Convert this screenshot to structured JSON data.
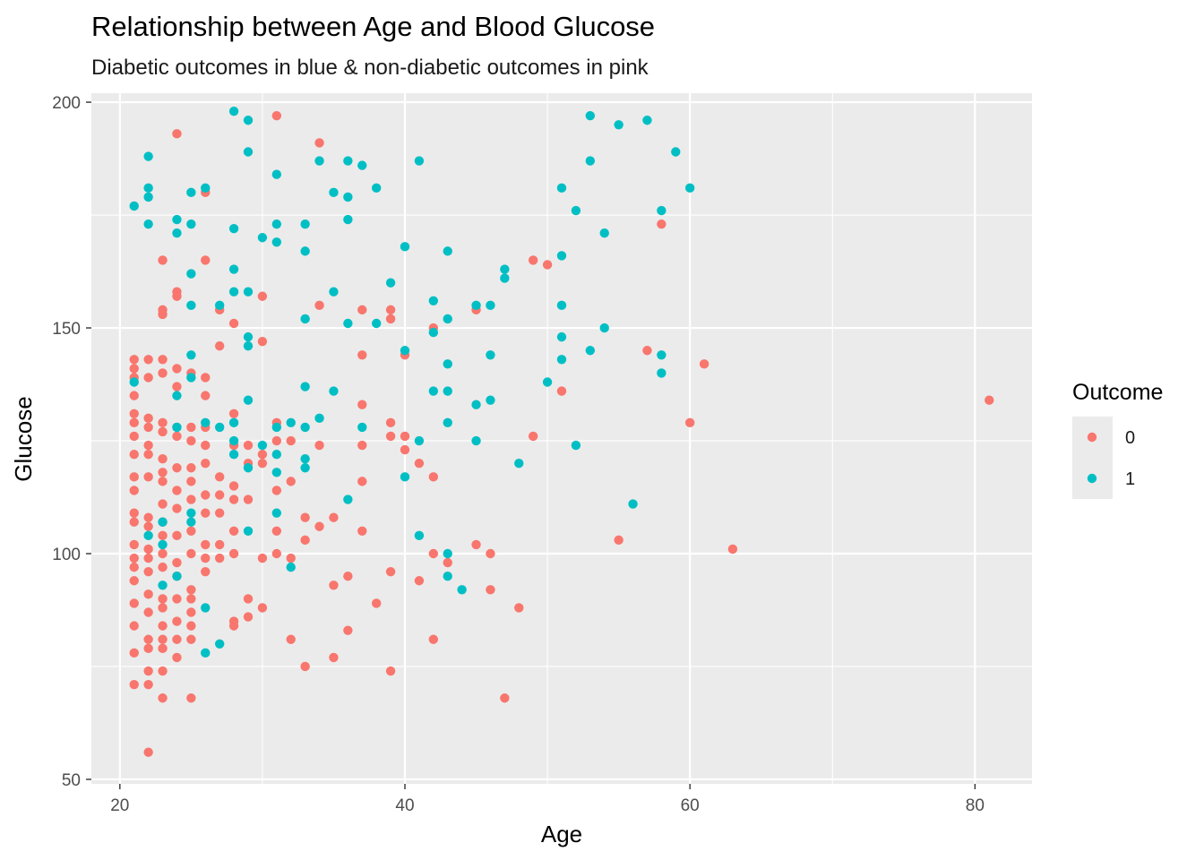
{
  "chart_data": {
    "type": "scatter",
    "title": "Relationship between Age and Blood Glucose",
    "subtitle": "Diabetic outcomes in blue & non-diabetic outcomes in pink",
    "xlabel": "Age",
    "ylabel": "Glucose",
    "xlim": [
      18,
      84
    ],
    "ylim": [
      49,
      202
    ],
    "x_ticks": [
      20,
      40,
      60,
      80
    ],
    "y_ticks": [
      50,
      100,
      150,
      200
    ],
    "grid": true,
    "legend": {
      "title": "Outcome",
      "position": "right"
    },
    "series": [
      {
        "name": "0",
        "color": "#F8766D",
        "points": [
          [
            21,
            143
          ],
          [
            21,
            141
          ],
          [
            21,
            139
          ],
          [
            21,
            135
          ],
          [
            21,
            131
          ],
          [
            21,
            129
          ],
          [
            21,
            126
          ],
          [
            21,
            122
          ],
          [
            21,
            117
          ],
          [
            21,
            114
          ],
          [
            21,
            109
          ],
          [
            21,
            107
          ],
          [
            21,
            102
          ],
          [
            21,
            99
          ],
          [
            21,
            97
          ],
          [
            21,
            94
          ],
          [
            21,
            89
          ],
          [
            21,
            84
          ],
          [
            21,
            78
          ],
          [
            21,
            71
          ],
          [
            22,
            143
          ],
          [
            22,
            139
          ],
          [
            22,
            130
          ],
          [
            22,
            128
          ],
          [
            22,
            124
          ],
          [
            22,
            122
          ],
          [
            22,
            117
          ],
          [
            22,
            108
          ],
          [
            22,
            106
          ],
          [
            22,
            101
          ],
          [
            22,
            99
          ],
          [
            22,
            96
          ],
          [
            22,
            91
          ],
          [
            22,
            87
          ],
          [
            22,
            81
          ],
          [
            22,
            79
          ],
          [
            22,
            74
          ],
          [
            22,
            71
          ],
          [
            22,
            56
          ],
          [
            23,
            165
          ],
          [
            23,
            154
          ],
          [
            23,
            153
          ],
          [
            23,
            143
          ],
          [
            23,
            140
          ],
          [
            23,
            129
          ],
          [
            23,
            127
          ],
          [
            23,
            121
          ],
          [
            23,
            118
          ],
          [
            23,
            116
          ],
          [
            23,
            111
          ],
          [
            23,
            107
          ],
          [
            23,
            104
          ],
          [
            23,
            100
          ],
          [
            23,
            97
          ],
          [
            23,
            90
          ],
          [
            23,
            88
          ],
          [
            23,
            84
          ],
          [
            23,
            81
          ],
          [
            23,
            79
          ],
          [
            23,
            74
          ],
          [
            23,
            68
          ],
          [
            24,
            193
          ],
          [
            24,
            158
          ],
          [
            24,
            157
          ],
          [
            24,
            141
          ],
          [
            24,
            137
          ],
          [
            24,
            128
          ],
          [
            24,
            126
          ],
          [
            24,
            119
          ],
          [
            24,
            114
          ],
          [
            24,
            110
          ],
          [
            24,
            104
          ],
          [
            24,
            98
          ],
          [
            24,
            95
          ],
          [
            24,
            90
          ],
          [
            24,
            85
          ],
          [
            24,
            81
          ],
          [
            24,
            77
          ],
          [
            25,
            140
          ],
          [
            25,
            128
          ],
          [
            25,
            125
          ],
          [
            25,
            119
          ],
          [
            25,
            116
          ],
          [
            25,
            112
          ],
          [
            25,
            105
          ],
          [
            25,
            100
          ],
          [
            25,
            92
          ],
          [
            25,
            90
          ],
          [
            25,
            87
          ],
          [
            25,
            84
          ],
          [
            25,
            81
          ],
          [
            25,
            68
          ],
          [
            26,
            180
          ],
          [
            26,
            165
          ],
          [
            26,
            139
          ],
          [
            26,
            135
          ],
          [
            26,
            128
          ],
          [
            26,
            124
          ],
          [
            26,
            120
          ],
          [
            26,
            113
          ],
          [
            26,
            109
          ],
          [
            26,
            102
          ],
          [
            26,
            99
          ],
          [
            26,
            96
          ],
          [
            27,
            154
          ],
          [
            27,
            146
          ],
          [
            27,
            117
          ],
          [
            27,
            113
          ],
          [
            27,
            109
          ],
          [
            27,
            102
          ],
          [
            27,
            99
          ],
          [
            28,
            151
          ],
          [
            28,
            131
          ],
          [
            28,
            124
          ],
          [
            28,
            115
          ],
          [
            28,
            112
          ],
          [
            28,
            105
          ],
          [
            28,
            100
          ],
          [
            28,
            85
          ],
          [
            28,
            84
          ],
          [
            29,
            124
          ],
          [
            29,
            120
          ],
          [
            29,
            112
          ],
          [
            29,
            90
          ],
          [
            29,
            86
          ],
          [
            30,
            157
          ],
          [
            30,
            147
          ],
          [
            30,
            122
          ],
          [
            30,
            120
          ],
          [
            30,
            99
          ],
          [
            30,
            88
          ],
          [
            31,
            197
          ],
          [
            31,
            129
          ],
          [
            31,
            125
          ],
          [
            31,
            114
          ],
          [
            31,
            105
          ],
          [
            31,
            100
          ],
          [
            32,
            125
          ],
          [
            32,
            116
          ],
          [
            32,
            99
          ],
          [
            32,
            81
          ],
          [
            33,
            108
          ],
          [
            33,
            103
          ],
          [
            33,
            75
          ],
          [
            34,
            191
          ],
          [
            34,
            155
          ],
          [
            34,
            124
          ],
          [
            34,
            106
          ],
          [
            35,
            108
          ],
          [
            35,
            93
          ],
          [
            35,
            77
          ],
          [
            36,
            95
          ],
          [
            36,
            83
          ],
          [
            37,
            154
          ],
          [
            37,
            144
          ],
          [
            37,
            133
          ],
          [
            37,
            124
          ],
          [
            37,
            116
          ],
          [
            37,
            105
          ],
          [
            38,
            89
          ],
          [
            39,
            154
          ],
          [
            39,
            152
          ],
          [
            39,
            129
          ],
          [
            39,
            126
          ],
          [
            39,
            96
          ],
          [
            39,
            74
          ],
          [
            40,
            144
          ],
          [
            40,
            126
          ],
          [
            40,
            123
          ],
          [
            41,
            120
          ],
          [
            41,
            94
          ],
          [
            42,
            150
          ],
          [
            42,
            117
          ],
          [
            42,
            100
          ],
          [
            42,
            81
          ],
          [
            43,
            98
          ],
          [
            45,
            154
          ],
          [
            45,
            102
          ],
          [
            46,
            100
          ],
          [
            46,
            92
          ],
          [
            47,
            68
          ],
          [
            48,
            88
          ],
          [
            49,
            165
          ],
          [
            49,
            126
          ],
          [
            50,
            164
          ],
          [
            51,
            136
          ],
          [
            55,
            103
          ],
          [
            57,
            145
          ],
          [
            58,
            173
          ],
          [
            60,
            129
          ],
          [
            61,
            142
          ],
          [
            63,
            101
          ],
          [
            81,
            134
          ]
        ]
      },
      {
        "name": "1",
        "color": "#00BFC4",
        "points": [
          [
            21,
            177
          ],
          [
            21,
            138
          ],
          [
            22,
            188
          ],
          [
            22,
            181
          ],
          [
            22,
            179
          ],
          [
            22,
            173
          ],
          [
            22,
            104
          ],
          [
            23,
            107
          ],
          [
            23,
            102
          ],
          [
            23,
            93
          ],
          [
            24,
            174
          ],
          [
            24,
            171
          ],
          [
            24,
            135
          ],
          [
            24,
            128
          ],
          [
            24,
            95
          ],
          [
            25,
            180
          ],
          [
            25,
            173
          ],
          [
            25,
            162
          ],
          [
            25,
            155
          ],
          [
            25,
            144
          ],
          [
            25,
            139
          ],
          [
            25,
            109
          ],
          [
            25,
            107
          ],
          [
            26,
            181
          ],
          [
            26,
            129
          ],
          [
            26,
            88
          ],
          [
            26,
            78
          ],
          [
            27,
            155
          ],
          [
            27,
            128
          ],
          [
            27,
            80
          ],
          [
            28,
            198
          ],
          [
            28,
            172
          ],
          [
            28,
            163
          ],
          [
            28,
            158
          ],
          [
            28,
            129
          ],
          [
            28,
            125
          ],
          [
            28,
            122
          ],
          [
            29,
            196
          ],
          [
            29,
            189
          ],
          [
            29,
            158
          ],
          [
            29,
            148
          ],
          [
            29,
            146
          ],
          [
            29,
            134
          ],
          [
            29,
            119
          ],
          [
            29,
            105
          ],
          [
            30,
            170
          ],
          [
            30,
            124
          ],
          [
            31,
            184
          ],
          [
            31,
            173
          ],
          [
            31,
            169
          ],
          [
            31,
            128
          ],
          [
            31,
            122
          ],
          [
            31,
            118
          ],
          [
            31,
            109
          ],
          [
            32,
            129
          ],
          [
            32,
            97
          ],
          [
            33,
            173
          ],
          [
            33,
            167
          ],
          [
            33,
            152
          ],
          [
            33,
            137
          ],
          [
            33,
            128
          ],
          [
            33,
            121
          ],
          [
            33,
            119
          ],
          [
            34,
            187
          ],
          [
            34,
            130
          ],
          [
            35,
            180
          ],
          [
            35,
            158
          ],
          [
            35,
            136
          ],
          [
            36,
            187
          ],
          [
            36,
            179
          ],
          [
            36,
            174
          ],
          [
            36,
            151
          ],
          [
            36,
            112
          ],
          [
            37,
            186
          ],
          [
            37,
            128
          ],
          [
            38,
            181
          ],
          [
            38,
            151
          ],
          [
            39,
            160
          ],
          [
            40,
            168
          ],
          [
            40,
            145
          ],
          [
            40,
            117
          ],
          [
            41,
            187
          ],
          [
            41,
            125
          ],
          [
            41,
            104
          ],
          [
            42,
            156
          ],
          [
            42,
            149
          ],
          [
            42,
            136
          ],
          [
            43,
            167
          ],
          [
            43,
            152
          ],
          [
            43,
            142
          ],
          [
            43,
            136
          ],
          [
            43,
            129
          ],
          [
            43,
            100
          ],
          [
            43,
            95
          ],
          [
            44,
            92
          ],
          [
            45,
            155
          ],
          [
            45,
            133
          ],
          [
            45,
            125
          ],
          [
            46,
            155
          ],
          [
            46,
            144
          ],
          [
            46,
            134
          ],
          [
            47,
            163
          ],
          [
            47,
            161
          ],
          [
            48,
            120
          ],
          [
            50,
            138
          ],
          [
            51,
            181
          ],
          [
            51,
            166
          ],
          [
            51,
            155
          ],
          [
            51,
            148
          ],
          [
            51,
            143
          ],
          [
            52,
            176
          ],
          [
            52,
            124
          ],
          [
            53,
            197
          ],
          [
            53,
            187
          ],
          [
            53,
            145
          ],
          [
            54,
            171
          ],
          [
            54,
            150
          ],
          [
            55,
            195
          ],
          [
            56,
            111
          ],
          [
            57,
            196
          ],
          [
            58,
            176
          ],
          [
            58,
            144
          ],
          [
            58,
            140
          ],
          [
            59,
            189
          ],
          [
            60,
            181
          ]
        ]
      }
    ]
  }
}
